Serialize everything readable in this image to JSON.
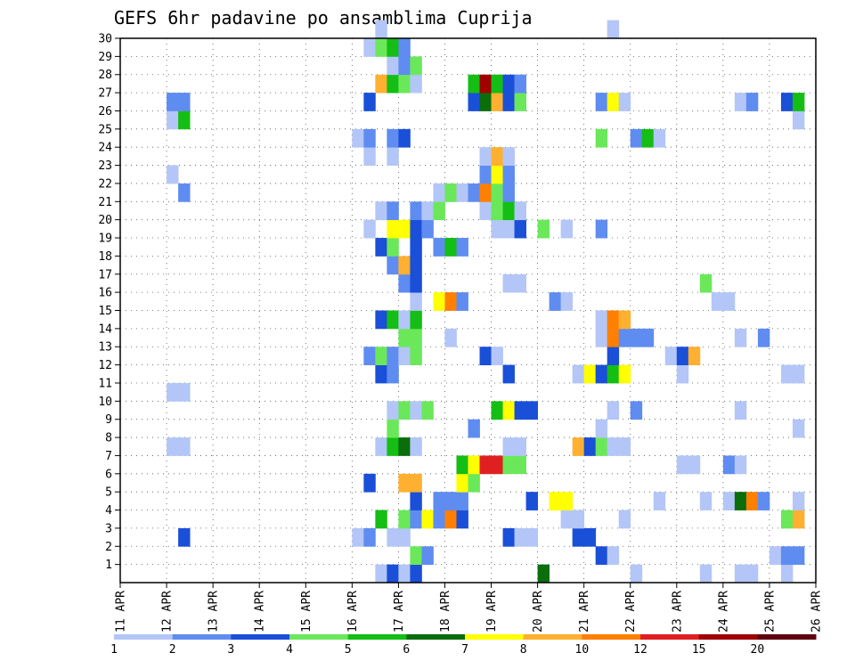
{
  "chart_data": {
    "type": "heatmap",
    "title": "GEFS 6hr padavine po ansamblima Cuprija",
    "xlabel": "",
    "ylabel": "",
    "x_ticks": [
      "11 APR",
      "12 APR",
      "13 APR",
      "14 APR",
      "15 APR",
      "16 APR",
      "17 APR",
      "18 APR",
      "19 APR",
      "20 APR",
      "21 APR",
      "22 APR",
      "23 APR",
      "24 APR",
      "25 APR",
      "26 APR"
    ],
    "x_range": [
      0,
      60
    ],
    "y_ticks": [
      "1",
      "2",
      "3",
      "4",
      "5",
      "6",
      "7",
      "8",
      "9",
      "10",
      "11",
      "12",
      "13",
      "14",
      "15",
      "16",
      "17",
      "18",
      "19",
      "20",
      "21",
      "22",
      "23",
      "24",
      "25",
      "26",
      "27",
      "28",
      "29",
      "30"
    ],
    "y_range": [
      0,
      30
    ],
    "grid": true,
    "legend": {
      "placement": "bottom",
      "labels": [
        "1",
        "2",
        "3",
        "4",
        "5",
        "6",
        "7",
        "8",
        "10",
        "12",
        "15",
        "20"
      ],
      "colors": [
        "#b3c6f7",
        "#5f8cf0",
        "#1a4fd8",
        "#6ae85a",
        "#14be14",
        "#0a6e0a",
        "#ffff00",
        "#ffb030",
        "#ff7f00",
        "#e02020",
        "#a00000",
        "#600010"
      ]
    },
    "cells": [
      {
        "x": 23,
        "y": 1,
        "c": "#b3c6f7"
      },
      {
        "x": 24,
        "y": 1,
        "c": "#1a4fd8"
      },
      {
        "x": 25,
        "y": 1,
        "c": "#b3c6f7"
      },
      {
        "x": 26,
        "y": 1,
        "c": "#1a4fd8"
      },
      {
        "x": 37,
        "y": 1,
        "c": "#0a6e0a"
      },
      {
        "x": 45,
        "y": 1,
        "c": "#b3c6f7"
      },
      {
        "x": 51,
        "y": 1,
        "c": "#b3c6f7"
      },
      {
        "x": 54,
        "y": 1,
        "c": "#b3c6f7"
      },
      {
        "x": 55,
        "y": 1,
        "c": "#b3c6f7"
      },
      {
        "x": 58,
        "y": 1,
        "c": "#b3c6f7"
      },
      {
        "x": 26,
        "y": 2,
        "c": "#6ae85a"
      },
      {
        "x": 27,
        "y": 2,
        "c": "#5f8cf0"
      },
      {
        "x": 42,
        "y": 2,
        "c": "#1a4fd8"
      },
      {
        "x": 43,
        "y": 2,
        "c": "#b3c6f7"
      },
      {
        "x": 57,
        "y": 2,
        "c": "#b3c6f7"
      },
      {
        "x": 58,
        "y": 2,
        "c": "#5f8cf0"
      },
      {
        "x": 59,
        "y": 2,
        "c": "#5f8cf0"
      },
      {
        "x": 6,
        "y": 3,
        "c": "#1a4fd8"
      },
      {
        "x": 21,
        "y": 3,
        "c": "#b3c6f7"
      },
      {
        "x": 22,
        "y": 3,
        "c": "#5f8cf0"
      },
      {
        "x": 24,
        "y": 3,
        "c": "#b3c6f7"
      },
      {
        "x": 25,
        "y": 3,
        "c": "#b3c6f7"
      },
      {
        "x": 34,
        "y": 3,
        "c": "#1a4fd8"
      },
      {
        "x": 35,
        "y": 3,
        "c": "#b3c6f7"
      },
      {
        "x": 36,
        "y": 3,
        "c": "#b3c6f7"
      },
      {
        "x": 40,
        "y": 3,
        "c": "#1a4fd8"
      },
      {
        "x": 41,
        "y": 3,
        "c": "#1a4fd8"
      },
      {
        "x": 23,
        "y": 4,
        "c": "#14be14"
      },
      {
        "x": 25,
        "y": 4,
        "c": "#6ae85a"
      },
      {
        "x": 26,
        "y": 4,
        "c": "#5f8cf0"
      },
      {
        "x": 27,
        "y": 4,
        "c": "#ffff00"
      },
      {
        "x": 28,
        "y": 4,
        "c": "#5f8cf0"
      },
      {
        "x": 29,
        "y": 4,
        "c": "#ff7f00"
      },
      {
        "x": 30,
        "y": 4,
        "c": "#1a4fd8"
      },
      {
        "x": 39,
        "y": 4,
        "c": "#b3c6f7"
      },
      {
        "x": 40,
        "y": 4,
        "c": "#b3c6f7"
      },
      {
        "x": 44,
        "y": 4,
        "c": "#b3c6f7"
      },
      {
        "x": 58,
        "y": 4,
        "c": "#6ae85a"
      },
      {
        "x": 59,
        "y": 4,
        "c": "#ffb030"
      },
      {
        "x": 26,
        "y": 5,
        "c": "#1a4fd8"
      },
      {
        "x": 28,
        "y": 5,
        "c": "#5f8cf0"
      },
      {
        "x": 29,
        "y": 5,
        "c": "#5f8cf0"
      },
      {
        "x": 30,
        "y": 5,
        "c": "#5f8cf0"
      },
      {
        "x": 36,
        "y": 5,
        "c": "#1a4fd8"
      },
      {
        "x": 38,
        "y": 5,
        "c": "#ffff00"
      },
      {
        "x": 39,
        "y": 5,
        "c": "#ffff00"
      },
      {
        "x": 47,
        "y": 5,
        "c": "#b3c6f7"
      },
      {
        "x": 51,
        "y": 5,
        "c": "#b3c6f7"
      },
      {
        "x": 53,
        "y": 5,
        "c": "#b3c6f7"
      },
      {
        "x": 54,
        "y": 5,
        "c": "#0a6e0a"
      },
      {
        "x": 55,
        "y": 5,
        "c": "#ff7f00"
      },
      {
        "x": 56,
        "y": 5,
        "c": "#5f8cf0"
      },
      {
        "x": 59,
        "y": 5,
        "c": "#b3c6f7"
      },
      {
        "x": 22,
        "y": 6,
        "c": "#1a4fd8"
      },
      {
        "x": 25,
        "y": 6,
        "c": "#ffb030"
      },
      {
        "x": 26,
        "y": 6,
        "c": "#ffb030"
      },
      {
        "x": 30,
        "y": 6,
        "c": "#ffff00"
      },
      {
        "x": 31,
        "y": 6,
        "c": "#6ae85a"
      },
      {
        "x": 30,
        "y": 7,
        "c": "#14be14"
      },
      {
        "x": 31,
        "y": 7,
        "c": "#ffff00"
      },
      {
        "x": 32,
        "y": 7,
        "c": "#e02020"
      },
      {
        "x": 33,
        "y": 7,
        "c": "#e02020"
      },
      {
        "x": 34,
        "y": 7,
        "c": "#6ae85a"
      },
      {
        "x": 35,
        "y": 7,
        "c": "#6ae85a"
      },
      {
        "x": 49,
        "y": 7,
        "c": "#b3c6f7"
      },
      {
        "x": 50,
        "y": 7,
        "c": "#b3c6f7"
      },
      {
        "x": 53,
        "y": 7,
        "c": "#5f8cf0"
      },
      {
        "x": 54,
        "y": 7,
        "c": "#b3c6f7"
      },
      {
        "x": 5,
        "y": 8,
        "c": "#b3c6f7"
      },
      {
        "x": 6,
        "y": 8,
        "c": "#b3c6f7"
      },
      {
        "x": 23,
        "y": 8,
        "c": "#b3c6f7"
      },
      {
        "x": 24,
        "y": 8,
        "c": "#14be14"
      },
      {
        "x": 25,
        "y": 8,
        "c": "#0a6e0a"
      },
      {
        "x": 26,
        "y": 8,
        "c": "#b3c6f7"
      },
      {
        "x": 34,
        "y": 8,
        "c": "#b3c6f7"
      },
      {
        "x": 35,
        "y": 8,
        "c": "#b3c6f7"
      },
      {
        "x": 40,
        "y": 8,
        "c": "#ffb030"
      },
      {
        "x": 41,
        "y": 8,
        "c": "#1a4fd8"
      },
      {
        "x": 42,
        "y": 8,
        "c": "#6ae85a"
      },
      {
        "x": 43,
        "y": 8,
        "c": "#b3c6f7"
      },
      {
        "x": 44,
        "y": 8,
        "c": "#b3c6f7"
      },
      {
        "x": 24,
        "y": 9,
        "c": "#6ae85a"
      },
      {
        "x": 31,
        "y": 9,
        "c": "#5f8cf0"
      },
      {
        "x": 42,
        "y": 9,
        "c": "#b3c6f7"
      },
      {
        "x": 59,
        "y": 9,
        "c": "#b3c6f7"
      },
      {
        "x": 24,
        "y": 10,
        "c": "#b3c6f7"
      },
      {
        "x": 25,
        "y": 10,
        "c": "#6ae85a"
      },
      {
        "x": 26,
        "y": 10,
        "c": "#b3c6f7"
      },
      {
        "x": 27,
        "y": 10,
        "c": "#6ae85a"
      },
      {
        "x": 33,
        "y": 10,
        "c": "#14be14"
      },
      {
        "x": 34,
        "y": 10,
        "c": "#ffff00"
      },
      {
        "x": 35,
        "y": 10,
        "c": "#1a4fd8"
      },
      {
        "x": 36,
        "y": 10,
        "c": "#1a4fd8"
      },
      {
        "x": 43,
        "y": 10,
        "c": "#b3c6f7"
      },
      {
        "x": 45,
        "y": 10,
        "c": "#5f8cf0"
      },
      {
        "x": 54,
        "y": 10,
        "c": "#b3c6f7"
      },
      {
        "x": 5,
        "y": 11,
        "c": "#b3c6f7"
      },
      {
        "x": 6,
        "y": 11,
        "c": "#b3c6f7"
      },
      {
        "x": 23,
        "y": 12,
        "c": "#1a4fd8"
      },
      {
        "x": 24,
        "y": 12,
        "c": "#5f8cf0"
      },
      {
        "x": 34,
        "y": 12,
        "c": "#1a4fd8"
      },
      {
        "x": 40,
        "y": 12,
        "c": "#b3c6f7"
      },
      {
        "x": 41,
        "y": 12,
        "c": "#ffff00"
      },
      {
        "x": 42,
        "y": 12,
        "c": "#1a4fd8"
      },
      {
        "x": 43,
        "y": 12,
        "c": "#14be14"
      },
      {
        "x": 44,
        "y": 12,
        "c": "#ffff00"
      },
      {
        "x": 49,
        "y": 12,
        "c": "#b3c6f7"
      },
      {
        "x": 58,
        "y": 12,
        "c": "#b3c6f7"
      },
      {
        "x": 59,
        "y": 12,
        "c": "#b3c6f7"
      },
      {
        "x": 22,
        "y": 13,
        "c": "#5f8cf0"
      },
      {
        "x": 23,
        "y": 13,
        "c": "#6ae85a"
      },
      {
        "x": 24,
        "y": 13,
        "c": "#5f8cf0"
      },
      {
        "x": 25,
        "y": 13,
        "c": "#b3c6f7"
      },
      {
        "x": 26,
        "y": 13,
        "c": "#6ae85a"
      },
      {
        "x": 32,
        "y": 13,
        "c": "#1a4fd8"
      },
      {
        "x": 33,
        "y": 13,
        "c": "#b3c6f7"
      },
      {
        "x": 43,
        "y": 13,
        "c": "#1a4fd8"
      },
      {
        "x": 48,
        "y": 13,
        "c": "#b3c6f7"
      },
      {
        "x": 49,
        "y": 13,
        "c": "#1a4fd8"
      },
      {
        "x": 50,
        "y": 13,
        "c": "#ffb030"
      },
      {
        "x": 25,
        "y": 14,
        "c": "#6ae85a"
      },
      {
        "x": 26,
        "y": 14,
        "c": "#6ae85a"
      },
      {
        "x": 29,
        "y": 14,
        "c": "#b3c6f7"
      },
      {
        "x": 42,
        "y": 14,
        "c": "#b3c6f7"
      },
      {
        "x": 43,
        "y": 14,
        "c": "#ff7f00"
      },
      {
        "x": 44,
        "y": 14,
        "c": "#5f8cf0"
      },
      {
        "x": 45,
        "y": 14,
        "c": "#5f8cf0"
      },
      {
        "x": 46,
        "y": 14,
        "c": "#5f8cf0"
      },
      {
        "x": 54,
        "y": 14,
        "c": "#b3c6f7"
      },
      {
        "x": 56,
        "y": 14,
        "c": "#5f8cf0"
      },
      {
        "x": 23,
        "y": 15,
        "c": "#1a4fd8"
      },
      {
        "x": 24,
        "y": 15,
        "c": "#14be14"
      },
      {
        "x": 25,
        "y": 15,
        "c": "#b3c6f7"
      },
      {
        "x": 26,
        "y": 15,
        "c": "#14be14"
      },
      {
        "x": 42,
        "y": 15,
        "c": "#b3c6f7"
      },
      {
        "x": 43,
        "y": 15,
        "c": "#ff7f00"
      },
      {
        "x": 44,
        "y": 15,
        "c": "#ffb030"
      },
      {
        "x": 26,
        "y": 16,
        "c": "#b3c6f7"
      },
      {
        "x": 28,
        "y": 16,
        "c": "#ffff00"
      },
      {
        "x": 29,
        "y": 16,
        "c": "#ff7f00"
      },
      {
        "x": 30,
        "y": 16,
        "c": "#5f8cf0"
      },
      {
        "x": 38,
        "y": 16,
        "c": "#5f8cf0"
      },
      {
        "x": 39,
        "y": 16,
        "c": "#b3c6f7"
      },
      {
        "x": 52,
        "y": 16,
        "c": "#b3c6f7"
      },
      {
        "x": 53,
        "y": 16,
        "c": "#b3c6f7"
      },
      {
        "x": 25,
        "y": 17,
        "c": "#5f8cf0"
      },
      {
        "x": 26,
        "y": 17,
        "c": "#1a4fd8"
      },
      {
        "x": 34,
        "y": 17,
        "c": "#b3c6f7"
      },
      {
        "x": 35,
        "y": 17,
        "c": "#b3c6f7"
      },
      {
        "x": 51,
        "y": 17,
        "c": "#6ae85a"
      },
      {
        "x": 24,
        "y": 18,
        "c": "#5f8cf0"
      },
      {
        "x": 25,
        "y": 18,
        "c": "#ffb030"
      },
      {
        "x": 26,
        "y": 18,
        "c": "#1a4fd8"
      },
      {
        "x": 23,
        "y": 19,
        "c": "#1a4fd8"
      },
      {
        "x": 24,
        "y": 19,
        "c": "#6ae85a"
      },
      {
        "x": 26,
        "y": 19,
        "c": "#1a4fd8"
      },
      {
        "x": 28,
        "y": 19,
        "c": "#5f8cf0"
      },
      {
        "x": 29,
        "y": 19,
        "c": "#14be14"
      },
      {
        "x": 30,
        "y": 19,
        "c": "#5f8cf0"
      },
      {
        "x": 22,
        "y": 20,
        "c": "#b3c6f7"
      },
      {
        "x": 24,
        "y": 20,
        "c": "#ffff00"
      },
      {
        "x": 25,
        "y": 20,
        "c": "#ffff00"
      },
      {
        "x": 26,
        "y": 20,
        "c": "#1a4fd8"
      },
      {
        "x": 27,
        "y": 20,
        "c": "#5f8cf0"
      },
      {
        "x": 33,
        "y": 20,
        "c": "#b3c6f7"
      },
      {
        "x": 34,
        "y": 20,
        "c": "#b3c6f7"
      },
      {
        "x": 35,
        "y": 20,
        "c": "#1a4fd8"
      },
      {
        "x": 37,
        "y": 20,
        "c": "#6ae85a"
      },
      {
        "x": 39,
        "y": 20,
        "c": "#b3c6f7"
      },
      {
        "x": 42,
        "y": 20,
        "c": "#5f8cf0"
      },
      {
        "x": 23,
        "y": 21,
        "c": "#b3c6f7"
      },
      {
        "x": 24,
        "y": 21,
        "c": "#5f8cf0"
      },
      {
        "x": 26,
        "y": 21,
        "c": "#5f8cf0"
      },
      {
        "x": 27,
        "y": 21,
        "c": "#b3c6f7"
      },
      {
        "x": 28,
        "y": 21,
        "c": "#6ae85a"
      },
      {
        "x": 32,
        "y": 21,
        "c": "#b3c6f7"
      },
      {
        "x": 33,
        "y": 21,
        "c": "#6ae85a"
      },
      {
        "x": 34,
        "y": 21,
        "c": "#14be14"
      },
      {
        "x": 35,
        "y": 21,
        "c": "#b3c6f7"
      },
      {
        "x": 6,
        "y": 22,
        "c": "#5f8cf0"
      },
      {
        "x": 28,
        "y": 22,
        "c": "#b3c6f7"
      },
      {
        "x": 29,
        "y": 22,
        "c": "#6ae85a"
      },
      {
        "x": 30,
        "y": 22,
        "c": "#b3c6f7"
      },
      {
        "x": 31,
        "y": 22,
        "c": "#5f8cf0"
      },
      {
        "x": 32,
        "y": 22,
        "c": "#ff7f00"
      },
      {
        "x": 33,
        "y": 22,
        "c": "#6ae85a"
      },
      {
        "x": 34,
        "y": 22,
        "c": "#5f8cf0"
      },
      {
        "x": 5,
        "y": 23,
        "c": "#b3c6f7"
      },
      {
        "x": 32,
        "y": 23,
        "c": "#5f8cf0"
      },
      {
        "x": 33,
        "y": 23,
        "c": "#ffff00"
      },
      {
        "x": 34,
        "y": 23,
        "c": "#5f8cf0"
      },
      {
        "x": 22,
        "y": 24,
        "c": "#b3c6f7"
      },
      {
        "x": 24,
        "y": 24,
        "c": "#b3c6f7"
      },
      {
        "x": 32,
        "y": 24,
        "c": "#b3c6f7"
      },
      {
        "x": 33,
        "y": 24,
        "c": "#ffb030"
      },
      {
        "x": 34,
        "y": 24,
        "c": "#b3c6f7"
      },
      {
        "x": 21,
        "y": 25,
        "c": "#b3c6f7"
      },
      {
        "x": 22,
        "y": 25,
        "c": "#5f8cf0"
      },
      {
        "x": 24,
        "y": 25,
        "c": "#5f8cf0"
      },
      {
        "x": 25,
        "y": 25,
        "c": "#1a4fd8"
      },
      {
        "x": 42,
        "y": 25,
        "c": "#6ae85a"
      },
      {
        "x": 45,
        "y": 25,
        "c": "#5f8cf0"
      },
      {
        "x": 46,
        "y": 25,
        "c": "#14be14"
      },
      {
        "x": 47,
        "y": 25,
        "c": "#b3c6f7"
      },
      {
        "x": 5,
        "y": 26,
        "c": "#b3c6f7"
      },
      {
        "x": 6,
        "y": 26,
        "c": "#14be14"
      },
      {
        "x": 59,
        "y": 26,
        "c": "#b3c6f7"
      },
      {
        "x": 5,
        "y": 27,
        "c": "#5f8cf0"
      },
      {
        "x": 6,
        "y": 27,
        "c": "#5f8cf0"
      },
      {
        "x": 22,
        "y": 27,
        "c": "#1a4fd8"
      },
      {
        "x": 31,
        "y": 27,
        "c": "#1a4fd8"
      },
      {
        "x": 32,
        "y": 27,
        "c": "#0a6e0a"
      },
      {
        "x": 33,
        "y": 27,
        "c": "#ffb030"
      },
      {
        "x": 34,
        "y": 27,
        "c": "#1a4fd8"
      },
      {
        "x": 35,
        "y": 27,
        "c": "#6ae85a"
      },
      {
        "x": 42,
        "y": 27,
        "c": "#5f8cf0"
      },
      {
        "x": 43,
        "y": 27,
        "c": "#ffff00"
      },
      {
        "x": 44,
        "y": 27,
        "c": "#b3c6f7"
      },
      {
        "x": 54,
        "y": 27,
        "c": "#b3c6f7"
      },
      {
        "x": 55,
        "y": 27,
        "c": "#5f8cf0"
      },
      {
        "x": 58,
        "y": 27,
        "c": "#1a4fd8"
      },
      {
        "x": 59,
        "y": 27,
        "c": "#14be14"
      },
      {
        "x": 23,
        "y": 28,
        "c": "#ffb030"
      },
      {
        "x": 24,
        "y": 28,
        "c": "#14be14"
      },
      {
        "x": 25,
        "y": 28,
        "c": "#6ae85a"
      },
      {
        "x": 26,
        "y": 28,
        "c": "#b3c6f7"
      },
      {
        "x": 31,
        "y": 28,
        "c": "#14be14"
      },
      {
        "x": 32,
        "y": 28,
        "c": "#a00000"
      },
      {
        "x": 33,
        "y": 28,
        "c": "#14be14"
      },
      {
        "x": 34,
        "y": 28,
        "c": "#1a4fd8"
      },
      {
        "x": 35,
        "y": 28,
        "c": "#5f8cf0"
      },
      {
        "x": 24,
        "y": 29,
        "c": "#b3c6f7"
      },
      {
        "x": 25,
        "y": 29,
        "c": "#5f8cf0"
      },
      {
        "x": 26,
        "y": 29,
        "c": "#6ae85a"
      },
      {
        "x": 22,
        "y": 30,
        "c": "#b3c6f7"
      },
      {
        "x": 23,
        "y": 30,
        "c": "#6ae85a"
      },
      {
        "x": 24,
        "y": 30,
        "c": "#14be14"
      },
      {
        "x": 25,
        "y": 30,
        "c": "#5f8cf0"
      },
      {
        "x": 23,
        "y": 31,
        "c": "#b3c6f7"
      },
      {
        "x": 43,
        "y": 31,
        "c": "#b3c6f7"
      }
    ]
  }
}
